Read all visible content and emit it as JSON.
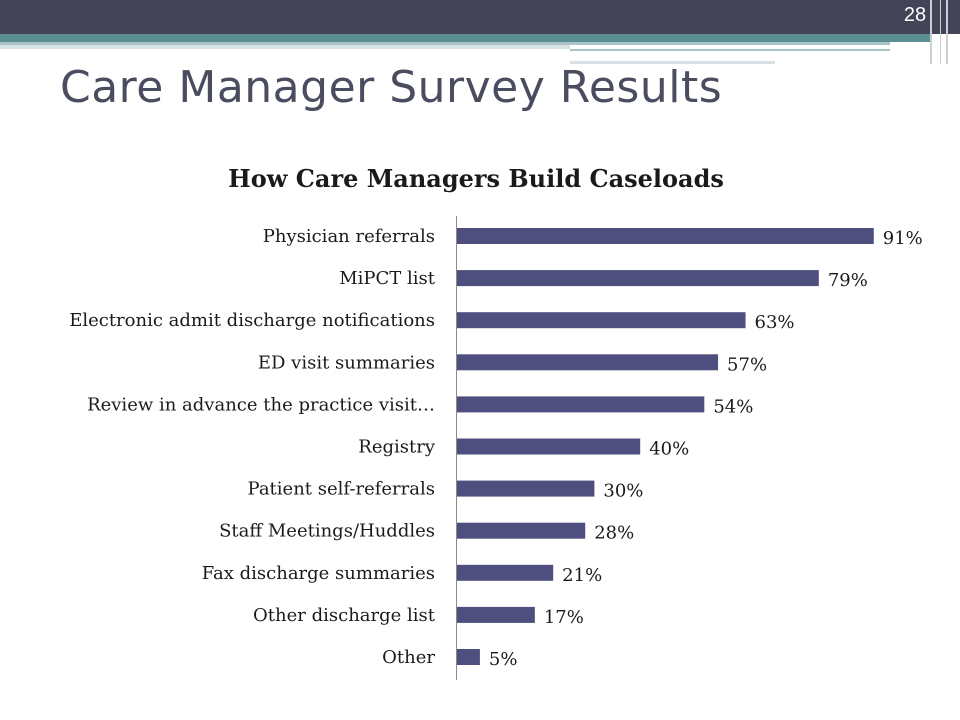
{
  "slide": {
    "number": "28",
    "title": "Care Manager Survey Results"
  },
  "colors": {
    "header_band": "#434458",
    "accent_stripe": "#5b8f93",
    "bar": "#4e4f7e",
    "title_text": "#4a4d5f"
  },
  "chart_data": {
    "type": "bar",
    "orientation": "horizontal",
    "title": "How Care Managers Build Caseloads",
    "xlabel": "",
    "ylabel": "",
    "value_format": "percent",
    "xlim": [
      0,
      100
    ],
    "grid": false,
    "legend": "none",
    "categories": [
      "Physician referrals",
      "MiPCT list",
      "Electronic admit discharge notifications",
      "ED visit summaries",
      "Review in advance the practice visit…",
      "Registry",
      "Patient self-referrals",
      "Staff Meetings/Huddles",
      "Fax discharge summaries",
      "Other discharge list",
      "Other"
    ],
    "values": [
      91,
      79,
      63,
      57,
      54,
      40,
      30,
      28,
      21,
      17,
      5
    ],
    "data_labels": [
      "91%",
      "79%",
      "63%",
      "57%",
      "54%",
      "40%",
      "30%",
      "28%",
      "21%",
      "17%",
      "5%"
    ]
  }
}
